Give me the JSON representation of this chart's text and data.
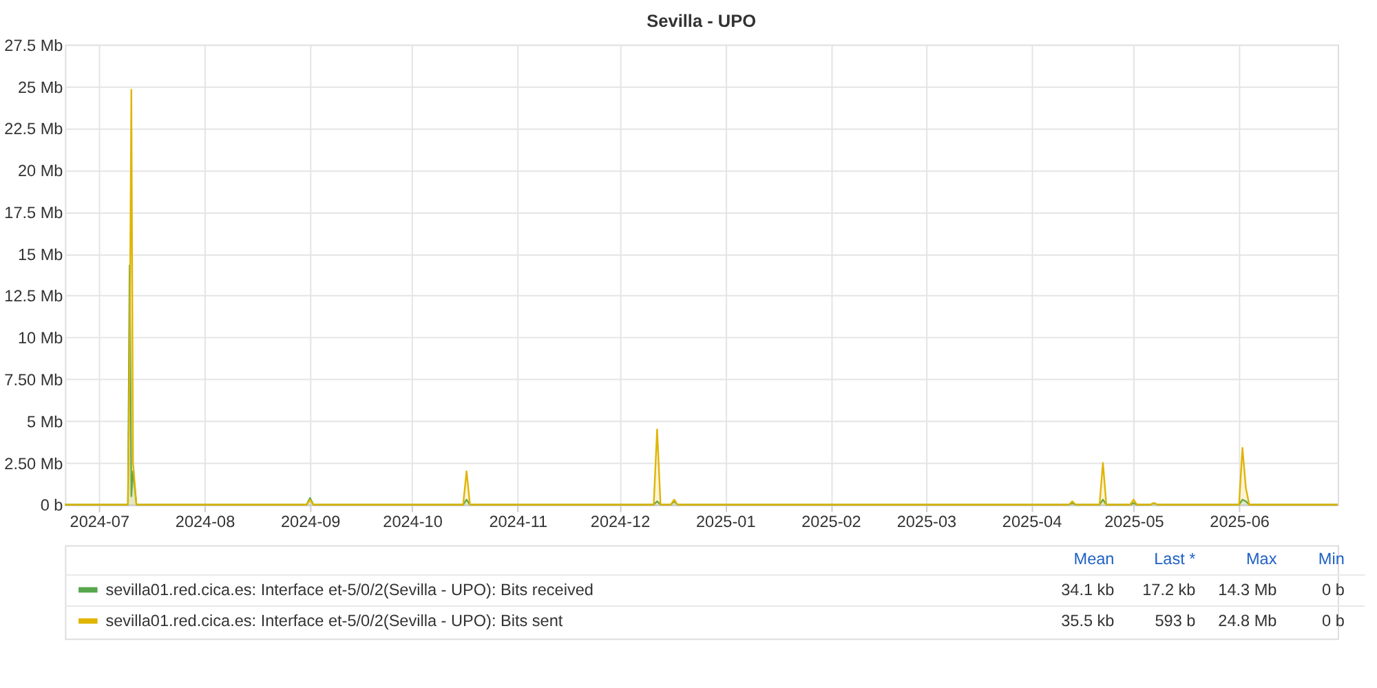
{
  "chart_data": {
    "type": "area",
    "title": "Sevilla - UPO",
    "x": [
      "2024-06-21",
      "2024-07-09T12:00",
      "2024-07-10T00:00",
      "2024-07-10T12:00",
      "2024-07-11T00:00",
      "2024-07-12",
      "2024-08-31",
      "2024-09-01",
      "2024-09-02",
      "2024-10-16",
      "2024-10-17",
      "2024-10-18",
      "2024-12-11",
      "2024-12-12",
      "2024-12-13",
      "2024-12-16",
      "2024-12-17",
      "2024-12-18",
      "2025-04-12",
      "2025-04-13",
      "2025-04-14",
      "2025-04-21",
      "2025-04-22",
      "2025-04-23",
      "2025-04-30",
      "2025-05-01",
      "2025-05-02",
      "2025-05-06",
      "2025-05-07",
      "2025-05-08",
      "2025-06-01",
      "2025-06-02",
      "2025-06-03",
      "2025-06-04",
      "2025-06-30"
    ],
    "series": [
      {
        "name": "sevilla01.red.cica.es: Interface et-5/0/2(Sevilla - UPO): Bits received",
        "color": "#56a64b",
        "values": [
          0,
          0,
          14.3,
          0.5,
          2,
          0,
          0,
          0.4,
          0,
          0,
          0.3,
          0,
          0,
          0.2,
          0,
          0,
          0.2,
          0,
          0,
          0.1,
          0,
          0,
          0.3,
          0,
          0,
          0.1,
          0,
          0,
          0.1,
          0,
          0,
          0.3,
          0.2,
          0,
          0
        ]
      },
      {
        "name": "sevilla01.red.cica.es: Interface et-5/0/2(Sevilla - UPO): Bits sent",
        "color": "#e0b400",
        "values": [
          0,
          0,
          9.0,
          24.8,
          2.5,
          0,
          0,
          0.3,
          0,
          0,
          2.0,
          0,
          0,
          4.5,
          0,
          0,
          0.3,
          0,
          0,
          0.2,
          0,
          0,
          2.5,
          0,
          0,
          0.3,
          0,
          0,
          0.1,
          0,
          0,
          3.4,
          1.0,
          0,
          0
        ]
      }
    ],
    "xlim": [
      "2024-06-21",
      "2025-06-30"
    ],
    "xticks": [
      "2024-07",
      "2024-08",
      "2024-09",
      "2024-10",
      "2024-11",
      "2024-12",
      "2025-01",
      "2025-02",
      "2025-03",
      "2025-04",
      "2025-05",
      "2025-06"
    ],
    "ylim": [
      0,
      27.5
    ],
    "yticks": [
      {
        "value": 0,
        "label": "0 b"
      },
      {
        "value": 2.5,
        "label": "2.50 Mb"
      },
      {
        "value": 5,
        "label": "5 Mb"
      },
      {
        "value": 7.5,
        "label": "7.50 Mb"
      },
      {
        "value": 10,
        "label": "10 Mb"
      },
      {
        "value": 12.5,
        "label": "12.5 Mb"
      },
      {
        "value": 15,
        "label": "15 Mb"
      },
      {
        "value": 17.5,
        "label": "17.5 Mb"
      },
      {
        "value": 20,
        "label": "20 Mb"
      },
      {
        "value": 22.5,
        "label": "22.5 Mb"
      },
      {
        "value": 25,
        "label": "25 Mb"
      },
      {
        "value": 27.5,
        "label": "27.5 Mb"
      }
    ],
    "grid": true,
    "legend": "bottom",
    "annotations": [
      "Mean",
      "Last *",
      "Max",
      "Min",
      "34.1 kb",
      "17.2 kb",
      "14.3 Mb",
      "0 b",
      "35.5 kb",
      "593 b",
      "24.8 Mb",
      "0 b"
    ]
  }
}
